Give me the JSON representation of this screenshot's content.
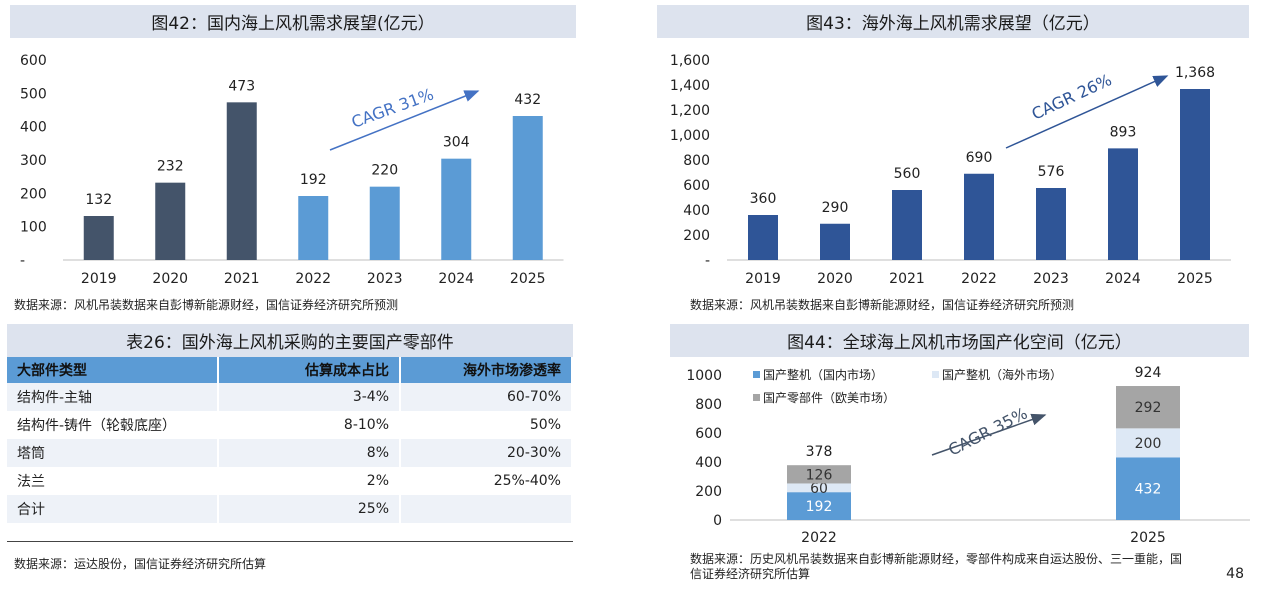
{
  "chart_data": [
    {
      "type": "bar",
      "title": "图42：国内海上风机需求展望(亿元）",
      "categories": [
        "2019",
        "2020",
        "2021",
        "2022",
        "2023",
        "2024",
        "2025"
      ],
      "values": [
        132,
        232,
        473,
        192,
        220,
        304,
        432
      ],
      "value_labels": [
        "132",
        "232",
        "473",
        "192",
        "220",
        "304",
        "432"
      ],
      "colors": [
        "#44546a",
        "#44546a",
        "#44546a",
        "#5b9bd5",
        "#5b9bd5",
        "#5b9bd5",
        "#5b9bd5"
      ],
      "yticks": [
        "-",
        "100",
        "200",
        "300",
        "400",
        "500",
        "600"
      ],
      "ylim": [
        0,
        600
      ],
      "annotation": "CAGR 31%",
      "annotation_color": "#4472c4",
      "grid": false
    },
    {
      "type": "bar",
      "title": "图43：海外海上风机需求展望（亿元）",
      "categories": [
        "2019",
        "2020",
        "2021",
        "2022",
        "2023",
        "2024",
        "2025"
      ],
      "values": [
        360,
        290,
        560,
        690,
        576,
        893,
        1368
      ],
      "value_labels": [
        "360",
        "290",
        "560",
        "690",
        "576",
        "893",
        "1,368"
      ],
      "colors": [
        "#2f5597",
        "#2f5597",
        "#2f5597",
        "#2f5597",
        "#2f5597",
        "#2f5597",
        "#2f5597"
      ],
      "yticks": [
        "-",
        "200",
        "400",
        "600",
        "800",
        "1,000",
        "1,200",
        "1,400",
        "1,600"
      ],
      "ylim": [
        0,
        1600
      ],
      "annotation": "CAGR 26%",
      "annotation_color": "#2f5597",
      "grid": false
    },
    {
      "type": "stacked_bar",
      "title": "图44：全球海上风机市场国产化空间（亿元）",
      "categories": [
        "2022",
        "2025"
      ],
      "series": [
        {
          "name": "国产整机（国内市场）",
          "values": [
            192,
            432
          ],
          "color": "#5b9bd5"
        },
        {
          "name": "国产整机（海外市场）",
          "values": [
            60,
            200
          ],
          "color": "#dde8f5"
        },
        {
          "name": "国产零部件（欧美市场）",
          "values": [
            126,
            292
          ],
          "color": "#a5a5a5"
        }
      ],
      "totals": [
        "378",
        "924"
      ],
      "yticks": [
        "0",
        "200",
        "400",
        "600",
        "800",
        "1000"
      ],
      "ylim": [
        0,
        1000
      ],
      "annotation": "CAGR 35%",
      "annotation_color": "#44546a",
      "legend_position": "top"
    }
  ],
  "sources": {
    "fig42": "数据来源：风机吊装数据来自彭博新能源财经，国信证券经济研究所预测",
    "fig43": "数据来源：风机吊装数据来自彭博新能源财经，国信证券经济研究所预测",
    "table26": "数据来源：运达股份，国信证券经济研究所估算",
    "fig44_line1": "数据来源：历史风机吊装数据来自彭博新能源财经，零部件构成来自运达股份、三一重能，国",
    "fig44_line2": "信证券经济研究所估算"
  },
  "table26": {
    "title": "表26：国外海上风机采购的主要国产零部件",
    "headers": [
      "大部件类型",
      "估算成本占比",
      "海外市场渗透率"
    ],
    "rows": [
      [
        "结构件-主轴",
        "3-4%",
        "60-70%"
      ],
      [
        "结构件-铸件（轮毂底座）",
        "8-10%",
        "50%"
      ],
      [
        "塔筒",
        "8%",
        "20-30%"
      ],
      [
        "法兰",
        "2%",
        "25%-40%"
      ],
      [
        "合计",
        "25%",
        ""
      ]
    ]
  },
  "page_number": "48"
}
